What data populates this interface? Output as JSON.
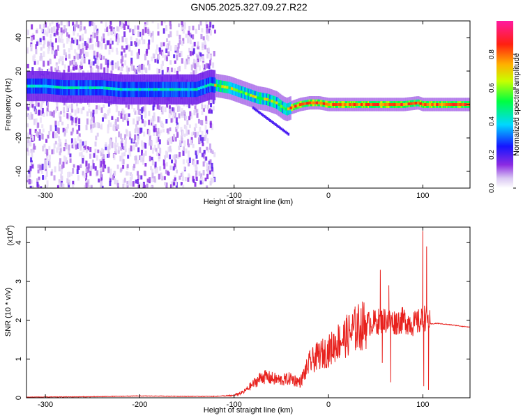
{
  "title": "GN05.2025.327.09.27.R22",
  "chart_data": [
    {
      "type": "heatmap",
      "title": "GN05.2025.327.09.27.R22",
      "xlabel": "Height of straight line (km)",
      "ylabel": "Frequency (Hz)",
      "xlim": [
        -320,
        150
      ],
      "ylim": [
        -50,
        50
      ],
      "xticks": [
        "-300",
        "-200",
        "-100",
        "0",
        "100"
      ],
      "xtick_values": [
        -300,
        -200,
        -100,
        0,
        100
      ],
      "yticks": [
        "-40",
        "-20",
        "0",
        "20",
        "40"
      ],
      "ytick_values": [
        -40,
        -20,
        0,
        20,
        40
      ],
      "colorbar": {
        "label": "Normalized spectral amplitude",
        "range": [
          0,
          1
        ],
        "ticks": [
          "0.0",
          "0.2",
          "0.4",
          "0.6",
          "0.8"
        ],
        "tick_values": [
          0.0,
          0.2,
          0.4,
          0.6,
          0.8
        ],
        "colormap": "rainbow (white-violet-blue-cyan-green-yellow-red-magenta)"
      },
      "dominant_frequency_trace": {
        "x": [
          -315,
          -300,
          -280,
          -260,
          -240,
          -220,
          -200,
          -180,
          -160,
          -140,
          -125,
          -115,
          -105,
          -95,
          -85,
          -75,
          -65,
          -55,
          -48,
          -44,
          -40,
          -30,
          -20,
          -10,
          0,
          20,
          40,
          60,
          80,
          95,
          100,
          120,
          150
        ],
        "y": [
          11,
          11,
          10,
          10,
          10,
          9,
          9,
          9,
          9,
          9,
          12,
          11,
          10,
          8,
          6,
          4,
          3,
          1,
          -2,
          -3,
          -2,
          0,
          1,
          1,
          0,
          0,
          0,
          0,
          0,
          1,
          0,
          0,
          0
        ]
      },
      "notes_scatter_region_x": [
        -320,
        -120
      ]
    },
    {
      "type": "line",
      "xlabel": "Height of straight line (km)",
      "ylabel": "SNR (10 * v/v)",
      "y_scale_label": "(x10",
      "y_scale_exp": "4",
      "xlim": [
        -320,
        150
      ],
      "ylim": [
        0,
        4.4
      ],
      "xticks": [
        "-300",
        "-200",
        "-100",
        "0",
        "100"
      ],
      "xtick_values": [
        -300,
        -200,
        -100,
        0,
        100
      ],
      "yticks": [
        "0",
        "1",
        "2",
        "3",
        "4"
      ],
      "ytick_values": [
        0,
        1,
        2,
        3,
        4
      ],
      "color": "#e8211d",
      "series": [
        {
          "x": [
            -320,
            -250,
            -200,
            -150,
            -120,
            -100,
            -90,
            -80,
            -70,
            -60,
            -50,
            -40,
            -30,
            -20,
            -10,
            0,
            10,
            20,
            30,
            40,
            50,
            60,
            70,
            80,
            90,
            100,
            103,
            108,
            115,
            130,
            150
          ],
          "y": [
            0.01,
            0.02,
            0.04,
            0.03,
            0.03,
            0.06,
            0.15,
            0.35,
            0.55,
            0.5,
            0.45,
            0.5,
            0.4,
            0.9,
            1.1,
            1.2,
            1.45,
            1.6,
            1.8,
            1.9,
            1.95,
            2.0,
            1.95,
            2.0,
            1.9,
            2.0,
            2.1,
            1.9,
            1.92,
            1.88,
            1.82
          ]
        }
      ],
      "spikes": [
        {
          "x": 55,
          "y": 3.3
        },
        {
          "x": 57,
          "y": 0.9
        },
        {
          "x": 64,
          "y": 2.9
        },
        {
          "x": 66,
          "y": 0.4
        },
        {
          "x": 100,
          "y": 4.3
        },
        {
          "x": 101,
          "y": 0.3
        },
        {
          "x": 104,
          "y": 3.9
        },
        {
          "x": 106,
          "y": 0.2
        }
      ]
    }
  ]
}
